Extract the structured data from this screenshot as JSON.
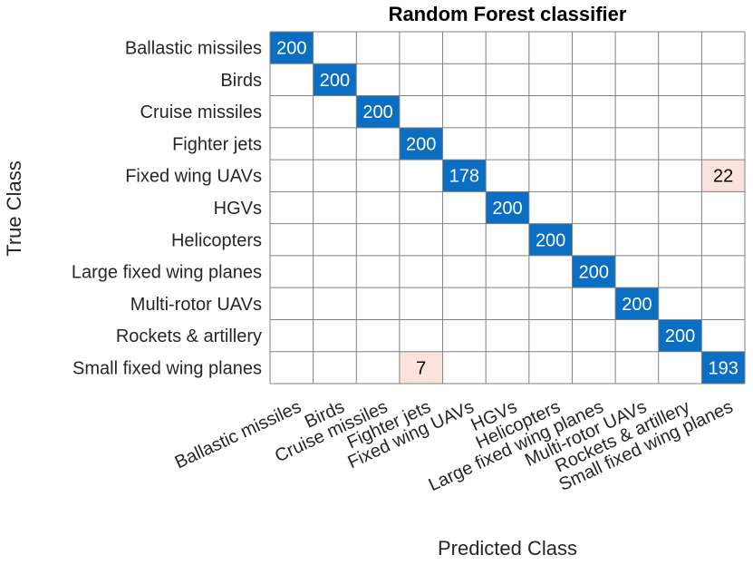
{
  "chart_data": {
    "type": "heatmap",
    "title": "Random Forest classifier",
    "xlabel": "Predicted Class",
    "ylabel": "True Class",
    "classes": [
      "Ballastic missiles",
      "Birds",
      "Cruise missiles",
      "Fighter jets",
      "Fixed wing UAVs",
      "HGVs",
      "Helicopters",
      "Large fixed wing planes",
      "Multi-rotor UAVs",
      "Rockets & artillery",
      "Small fixed wing planes"
    ],
    "matrix": [
      [
        200,
        0,
        0,
        0,
        0,
        0,
        0,
        0,
        0,
        0,
        0
      ],
      [
        0,
        200,
        0,
        0,
        0,
        0,
        0,
        0,
        0,
        0,
        0
      ],
      [
        0,
        0,
        200,
        0,
        0,
        0,
        0,
        0,
        0,
        0,
        0
      ],
      [
        0,
        0,
        0,
        200,
        0,
        0,
        0,
        0,
        0,
        0,
        0
      ],
      [
        0,
        0,
        0,
        0,
        178,
        0,
        0,
        0,
        0,
        0,
        22
      ],
      [
        0,
        0,
        0,
        0,
        0,
        200,
        0,
        0,
        0,
        0,
        0
      ],
      [
        0,
        0,
        0,
        0,
        0,
        0,
        200,
        0,
        0,
        0,
        0
      ],
      [
        0,
        0,
        0,
        0,
        0,
        0,
        0,
        200,
        0,
        0,
        0
      ],
      [
        0,
        0,
        0,
        0,
        0,
        0,
        0,
        0,
        200,
        0,
        0
      ],
      [
        0,
        0,
        0,
        0,
        0,
        0,
        0,
        0,
        0,
        200,
        0
      ],
      [
        0,
        0,
        0,
        7,
        0,
        0,
        0,
        0,
        0,
        0,
        193
      ]
    ],
    "hide_zero_values": true,
    "colors": {
      "correct": "#0a6fc2",
      "correct_text": "#ffffff",
      "error": "#f9e3dc",
      "error_text": "#000000",
      "grid": "#808080",
      "label_text": "#262626"
    }
  }
}
